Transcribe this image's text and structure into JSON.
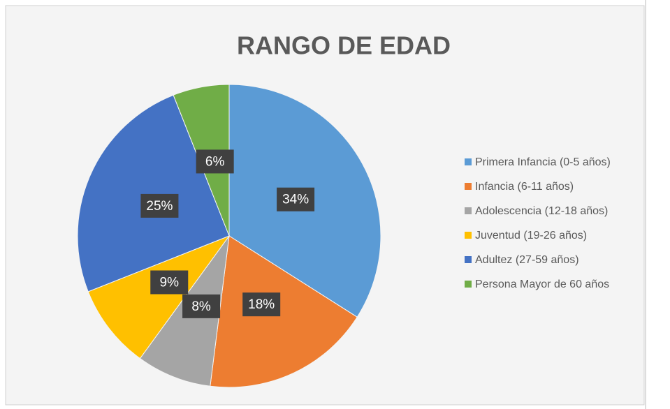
{
  "chart_data": {
    "type": "pie",
    "title": "RANGO DE EDAD",
    "categories": [
      "Primera Infancia (0-5 años)",
      "Infancia (6-11 años)",
      "Adolescencia (12-18 años)",
      "Juventud (19-26 años)",
      "Adultez (27-59 años)",
      "Persona Mayor de 60 años"
    ],
    "values": [
      34,
      18,
      8,
      9,
      25,
      6
    ],
    "value_labels": [
      "34%",
      "18%",
      "8%",
      "9%",
      "25%",
      "6%"
    ],
    "colors": [
      "#5b9bd5",
      "#ed7d31",
      "#a5a5a5",
      "#ffc000",
      "#4472c4",
      "#70ad47"
    ],
    "legend": "right"
  }
}
